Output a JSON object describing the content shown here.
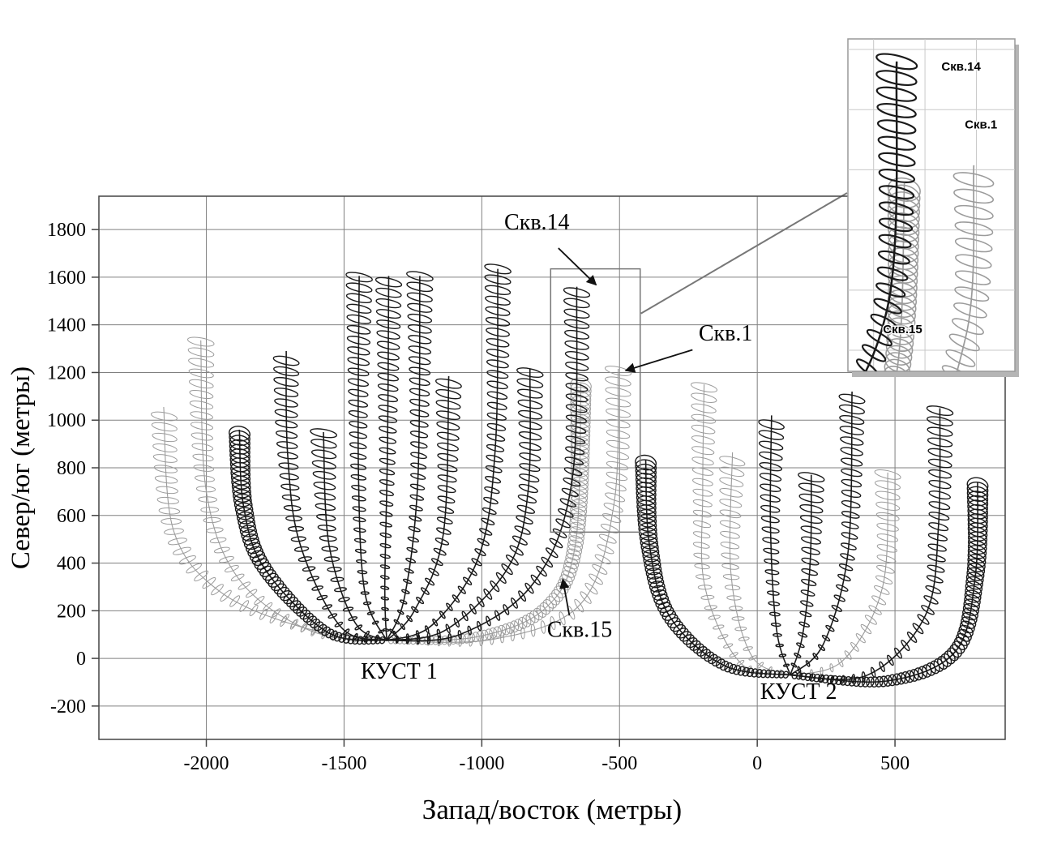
{
  "chart_data": {
    "type": "line",
    "title": "",
    "xlabel": "Запад/восток (метры)",
    "ylabel": "Север/юг (метры)",
    "xlim": [
      -2390,
      900
    ],
    "ylim": [
      -340,
      1940
    ],
    "x_ticks": [
      -2000,
      -1500,
      -1000,
      -500,
      0,
      500
    ],
    "y_ticks": [
      -200,
      0,
      200,
      400,
      600,
      800,
      1000,
      1200,
      1400,
      1600,
      1800
    ],
    "grid": true,
    "colors": {
      "dark": "#1a1a1a",
      "light": "#9b9b9b",
      "grid": "#808080",
      "frame": "#444444"
    },
    "pads": [
      {
        "label": "КУСТ 1",
        "origin": [
          -1345,
          75
        ],
        "label_pos": [
          -1300,
          -85
        ]
      },
      {
        "label": "КУСТ 2",
        "origin": [
          120,
          -70
        ],
        "label_pos": [
          150,
          -170
        ]
      }
    ],
    "wells": [
      {
        "pad": "КУСТ 1",
        "shade": "light",
        "dense": false,
        "pts": [
          [
            -1345,
            75
          ],
          [
            -1650,
            130
          ],
          [
            -1950,
            280
          ],
          [
            -2120,
            540
          ],
          [
            -2155,
            1055
          ]
        ]
      },
      {
        "pad": "КУСТ 1",
        "shade": "light",
        "dense": false,
        "pts": [
          [
            -1345,
            75
          ],
          [
            -1620,
            115
          ],
          [
            -1880,
            330
          ],
          [
            -2000,
            700
          ],
          [
            -2020,
            1335
          ]
        ]
      },
      {
        "pad": "КУСТ 1",
        "shade": "dark",
        "dense": true,
        "pts": [
          [
            -1345,
            75
          ],
          [
            -1560,
            110
          ],
          [
            -1790,
            380
          ],
          [
            -1865,
            640
          ],
          [
            -1880,
            960
          ]
        ]
      },
      {
        "pad": "КУСТ 1",
        "shade": "dark",
        "dense": false,
        "pts": [
          [
            -1345,
            75
          ],
          [
            -1510,
            130
          ],
          [
            -1660,
            480
          ],
          [
            -1705,
            860
          ],
          [
            -1710,
            1290
          ]
        ]
      },
      {
        "pad": "КУСТ 1",
        "shade": "dark",
        "dense": false,
        "pts": [
          [
            -1345,
            75
          ],
          [
            -1460,
            150
          ],
          [
            -1555,
            480
          ],
          [
            -1575,
            950
          ]
        ]
      },
      {
        "pad": "КУСТ 1",
        "shade": "dark",
        "dense": false,
        "pts": [
          [
            -1345,
            75
          ],
          [
            -1425,
            280
          ],
          [
            -1448,
            800
          ],
          [
            -1445,
            1605
          ]
        ]
      },
      {
        "pad": "КУСТ 1",
        "shade": "dark",
        "dense": false,
        "pts": [
          [
            -1345,
            75
          ],
          [
            -1352,
            300
          ],
          [
            -1342,
            900
          ],
          [
            -1338,
            1605
          ]
        ]
      },
      {
        "pad": "КУСТ 1",
        "shade": "dark",
        "dense": false,
        "pts": [
          [
            -1345,
            75
          ],
          [
            -1280,
            260
          ],
          [
            -1232,
            750
          ],
          [
            -1225,
            1605
          ]
        ]
      },
      {
        "pad": "КУСТ 1",
        "shade": "dark",
        "dense": false,
        "pts": [
          [
            -1345,
            75
          ],
          [
            -1245,
            200
          ],
          [
            -1140,
            520
          ],
          [
            -1120,
            1185
          ]
        ]
      },
      {
        "pad": "КУСТ 1",
        "shade": "dark",
        "dense": false,
        "pts": [
          [
            -1345,
            75
          ],
          [
            -1180,
            140
          ],
          [
            -1010,
            430
          ],
          [
            -950,
            900
          ],
          [
            -942,
            1635
          ]
        ]
      },
      {
        "pad": "КУСТ 1",
        "shade": "dark",
        "dense": false,
        "pts": [
          [
            -1345,
            75
          ],
          [
            -1130,
            120
          ],
          [
            -905,
            380
          ],
          [
            -832,
            700
          ],
          [
            -825,
            1215
          ]
        ]
      },
      {
        "pad": "КУСТ 1",
        "name": "Скв.14",
        "shade": "dark",
        "dense": false,
        "pts": [
          [
            -1345,
            75
          ],
          [
            -1080,
            100
          ],
          [
            -810,
            320
          ],
          [
            -672,
            750
          ],
          [
            -655,
            1560
          ]
        ]
      },
      {
        "pad": "КУСТ 1",
        "name": "Скв.15",
        "shade": "light",
        "dense": true,
        "pts": [
          [
            -1345,
            75
          ],
          [
            -1020,
            90
          ],
          [
            -770,
            210
          ],
          [
            -660,
            480
          ],
          [
            -640,
            1155
          ]
        ]
      },
      {
        "pad": "КУСТ 1",
        "name": "Скв.1",
        "shade": "light",
        "dense": false,
        "pts": [
          [
            -1345,
            75
          ],
          [
            -960,
            80
          ],
          [
            -640,
            230
          ],
          [
            -520,
            650
          ],
          [
            -505,
            1215
          ]
        ]
      },
      {
        "pad": "КУСТ 2",
        "shade": "dark",
        "dense": true,
        "pts": [
          [
            120,
            -70
          ],
          [
            -120,
            -30
          ],
          [
            -320,
            180
          ],
          [
            -392,
            480
          ],
          [
            -405,
            835
          ]
        ]
      },
      {
        "pad": "КУСТ 2",
        "shade": "light",
        "dense": false,
        "pts": [
          [
            120,
            -70
          ],
          [
            -60,
            -20
          ],
          [
            -190,
            300
          ],
          [
            -198,
            700
          ],
          [
            -193,
            1150
          ]
        ]
      },
      {
        "pad": "КУСТ 2",
        "shade": "light",
        "dense": false,
        "pts": [
          [
            120,
            -70
          ],
          [
            -20,
            10
          ],
          [
            -95,
            350
          ],
          [
            -90,
            865
          ]
        ]
      },
      {
        "pad": "КУСТ 2",
        "shade": "dark",
        "dense": false,
        "pts": [
          [
            120,
            -70
          ],
          [
            70,
            120
          ],
          [
            48,
            550
          ],
          [
            52,
            1020
          ]
        ]
      },
      {
        "pad": "КУСТ 2",
        "shade": "dark",
        "dense": false,
        "pts": [
          [
            120,
            -70
          ],
          [
            165,
            100
          ],
          [
            193,
            420
          ],
          [
            196,
            770
          ]
        ]
      },
      {
        "pad": "КУСТ 2",
        "shade": "dark",
        "dense": false,
        "pts": [
          [
            120,
            -70
          ],
          [
            240,
            60
          ],
          [
            330,
            450
          ],
          [
            344,
            1120
          ]
        ]
      },
      {
        "pad": "КУСТ 2",
        "shade": "light",
        "dense": false,
        "pts": [
          [
            120,
            -70
          ],
          [
            310,
            -10
          ],
          [
            455,
            300
          ],
          [
            474,
            780
          ]
        ]
      },
      {
        "pad": "КУСТ 2",
        "shade": "dark",
        "dense": false,
        "pts": [
          [
            120,
            -70
          ],
          [
            400,
            -70
          ],
          [
            610,
            180
          ],
          [
            658,
            560
          ],
          [
            663,
            1050
          ]
        ]
      },
      {
        "pad": "КУСТ 2",
        "shade": "dark",
        "dense": true,
        "pts": [
          [
            120,
            -70
          ],
          [
            470,
            -95
          ],
          [
            720,
            30
          ],
          [
            792,
            350
          ],
          [
            800,
            740
          ]
        ]
      }
    ],
    "annotations": [
      {
        "text": "Скв.14",
        "tpos": [
          -800,
          1800
        ],
        "line": [
          [
            -722,
            1722
          ],
          [
            -585,
            1568
          ]
        ]
      },
      {
        "text": "Скв.1",
        "tpos": [
          -115,
          1335
        ],
        "line": [
          [
            -235,
            1295
          ],
          [
            -478,
            1208
          ]
        ]
      },
      {
        "text": "Скв.15",
        "tpos": [
          -645,
          90
        ],
        "line": [
          [
            -682,
            180
          ],
          [
            -706,
            332
          ]
        ]
      }
    ],
    "zoom_region": {
      "x": [
        -750,
        -425
      ],
      "y": [
        530,
        1635
      ]
    },
    "inset": {
      "region": {
        "x": [
          -750,
          -425
        ],
        "y": [
          530,
          1635
        ]
      },
      "grid_x": [
        -700,
        -600,
        -500
      ],
      "grid_y": [
        600,
        800,
        1000,
        1200,
        1400,
        1600
      ],
      "wells": [
        "Скв.14",
        "Скв.1",
        "Скв.15"
      ],
      "labels": [
        {
          "text": "Скв.14",
          "fx": 0.56,
          "fy": 0.095
        },
        {
          "text": "Скв.1",
          "fx": 0.7,
          "fy": 0.27
        },
        {
          "text": "Скв.15",
          "fx": 0.21,
          "fy": 0.885
        }
      ]
    }
  }
}
